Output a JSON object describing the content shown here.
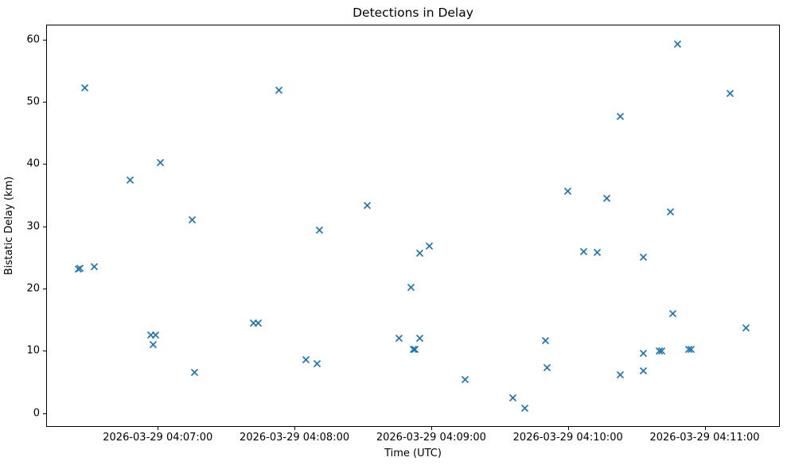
{
  "chart_data": {
    "type": "scatter",
    "title": "Detections in Delay",
    "xlabel": "Time (UTC)",
    "ylabel": "Bistatic Delay (km)",
    "date": "2026-03-29",
    "marker": "x",
    "marker_color": "#1f77b4",
    "grid": false,
    "legend": "none",
    "xlim": [
      "04:06:11",
      "04:11:33"
    ],
    "ylim": [
      -2.2,
      62.4
    ],
    "xticks": [
      {
        "time": "04:07:00",
        "label": "2026-03-29 04:07:00"
      },
      {
        "time": "04:08:00",
        "label": "2026-03-29 04:08:00"
      },
      {
        "time": "04:09:00",
        "label": "2026-03-29 04:09:00"
      },
      {
        "time": "04:10:00",
        "label": "2026-03-29 04:10:00"
      },
      {
        "time": "04:11:00",
        "label": "2026-03-29 04:11:00"
      }
    ],
    "yticks": [
      0,
      10,
      20,
      30,
      40,
      50,
      60
    ],
    "points": [
      [
        "04:06:28",
        52.2
      ],
      [
        "04:06:48",
        37.4
      ],
      [
        "04:07:01",
        40.3
      ],
      [
        "04:07:15",
        31.1
      ],
      [
        "04:06:25",
        23.2
      ],
      [
        "04:06:26",
        23.3
      ],
      [
        "04:06:32",
        23.5
      ],
      [
        "04:06:57",
        12.6
      ],
      [
        "04:06:59",
        12.6
      ],
      [
        "04:06:58",
        11.0
      ],
      [
        "04:07:16",
        6.5
      ],
      [
        "04:07:53",
        51.9
      ],
      [
        "04:08:32",
        33.3
      ],
      [
        "04:08:11",
        29.4
      ],
      [
        "04:08:59",
        26.8
      ],
      [
        "04:08:55",
        25.7
      ],
      [
        "04:08:51",
        20.2
      ],
      [
        "04:07:42",
        14.4
      ],
      [
        "04:07:44",
        14.4
      ],
      [
        "04:08:46",
        12.0
      ],
      [
        "04:08:55",
        12.0
      ],
      [
        "04:08:52",
        10.2
      ],
      [
        "04:08:53",
        10.2
      ],
      [
        "04:08:05",
        8.6
      ],
      [
        "04:08:10",
        8.0
      ],
      [
        "04:10:23",
        47.7
      ],
      [
        "04:10:00",
        35.7
      ],
      [
        "04:10:17",
        34.5
      ],
      [
        "04:10:07",
        25.9
      ],
      [
        "04:10:13",
        25.8
      ],
      [
        "04:09:50",
        11.6
      ],
      [
        "04:09:51",
        7.3
      ],
      [
        "04:09:15",
        5.4
      ],
      [
        "04:09:36",
        2.5
      ],
      [
        "04:09:41",
        0.8
      ],
      [
        "04:10:23",
        6.2
      ],
      [
        "04:10:48",
        59.3
      ],
      [
        "04:11:11",
        51.4
      ],
      [
        "04:10:45",
        32.3
      ],
      [
        "04:10:33",
        25.1
      ],
      [
        "04:10:46",
        16.0
      ],
      [
        "04:11:18",
        13.7
      ],
      [
        "04:10:33",
        9.6
      ],
      [
        "04:10:40",
        10.0
      ],
      [
        "04:10:41",
        10.0
      ],
      [
        "04:10:53",
        10.2
      ],
      [
        "04:10:54",
        10.2
      ],
      [
        "04:10:33",
        6.8
      ]
    ]
  }
}
